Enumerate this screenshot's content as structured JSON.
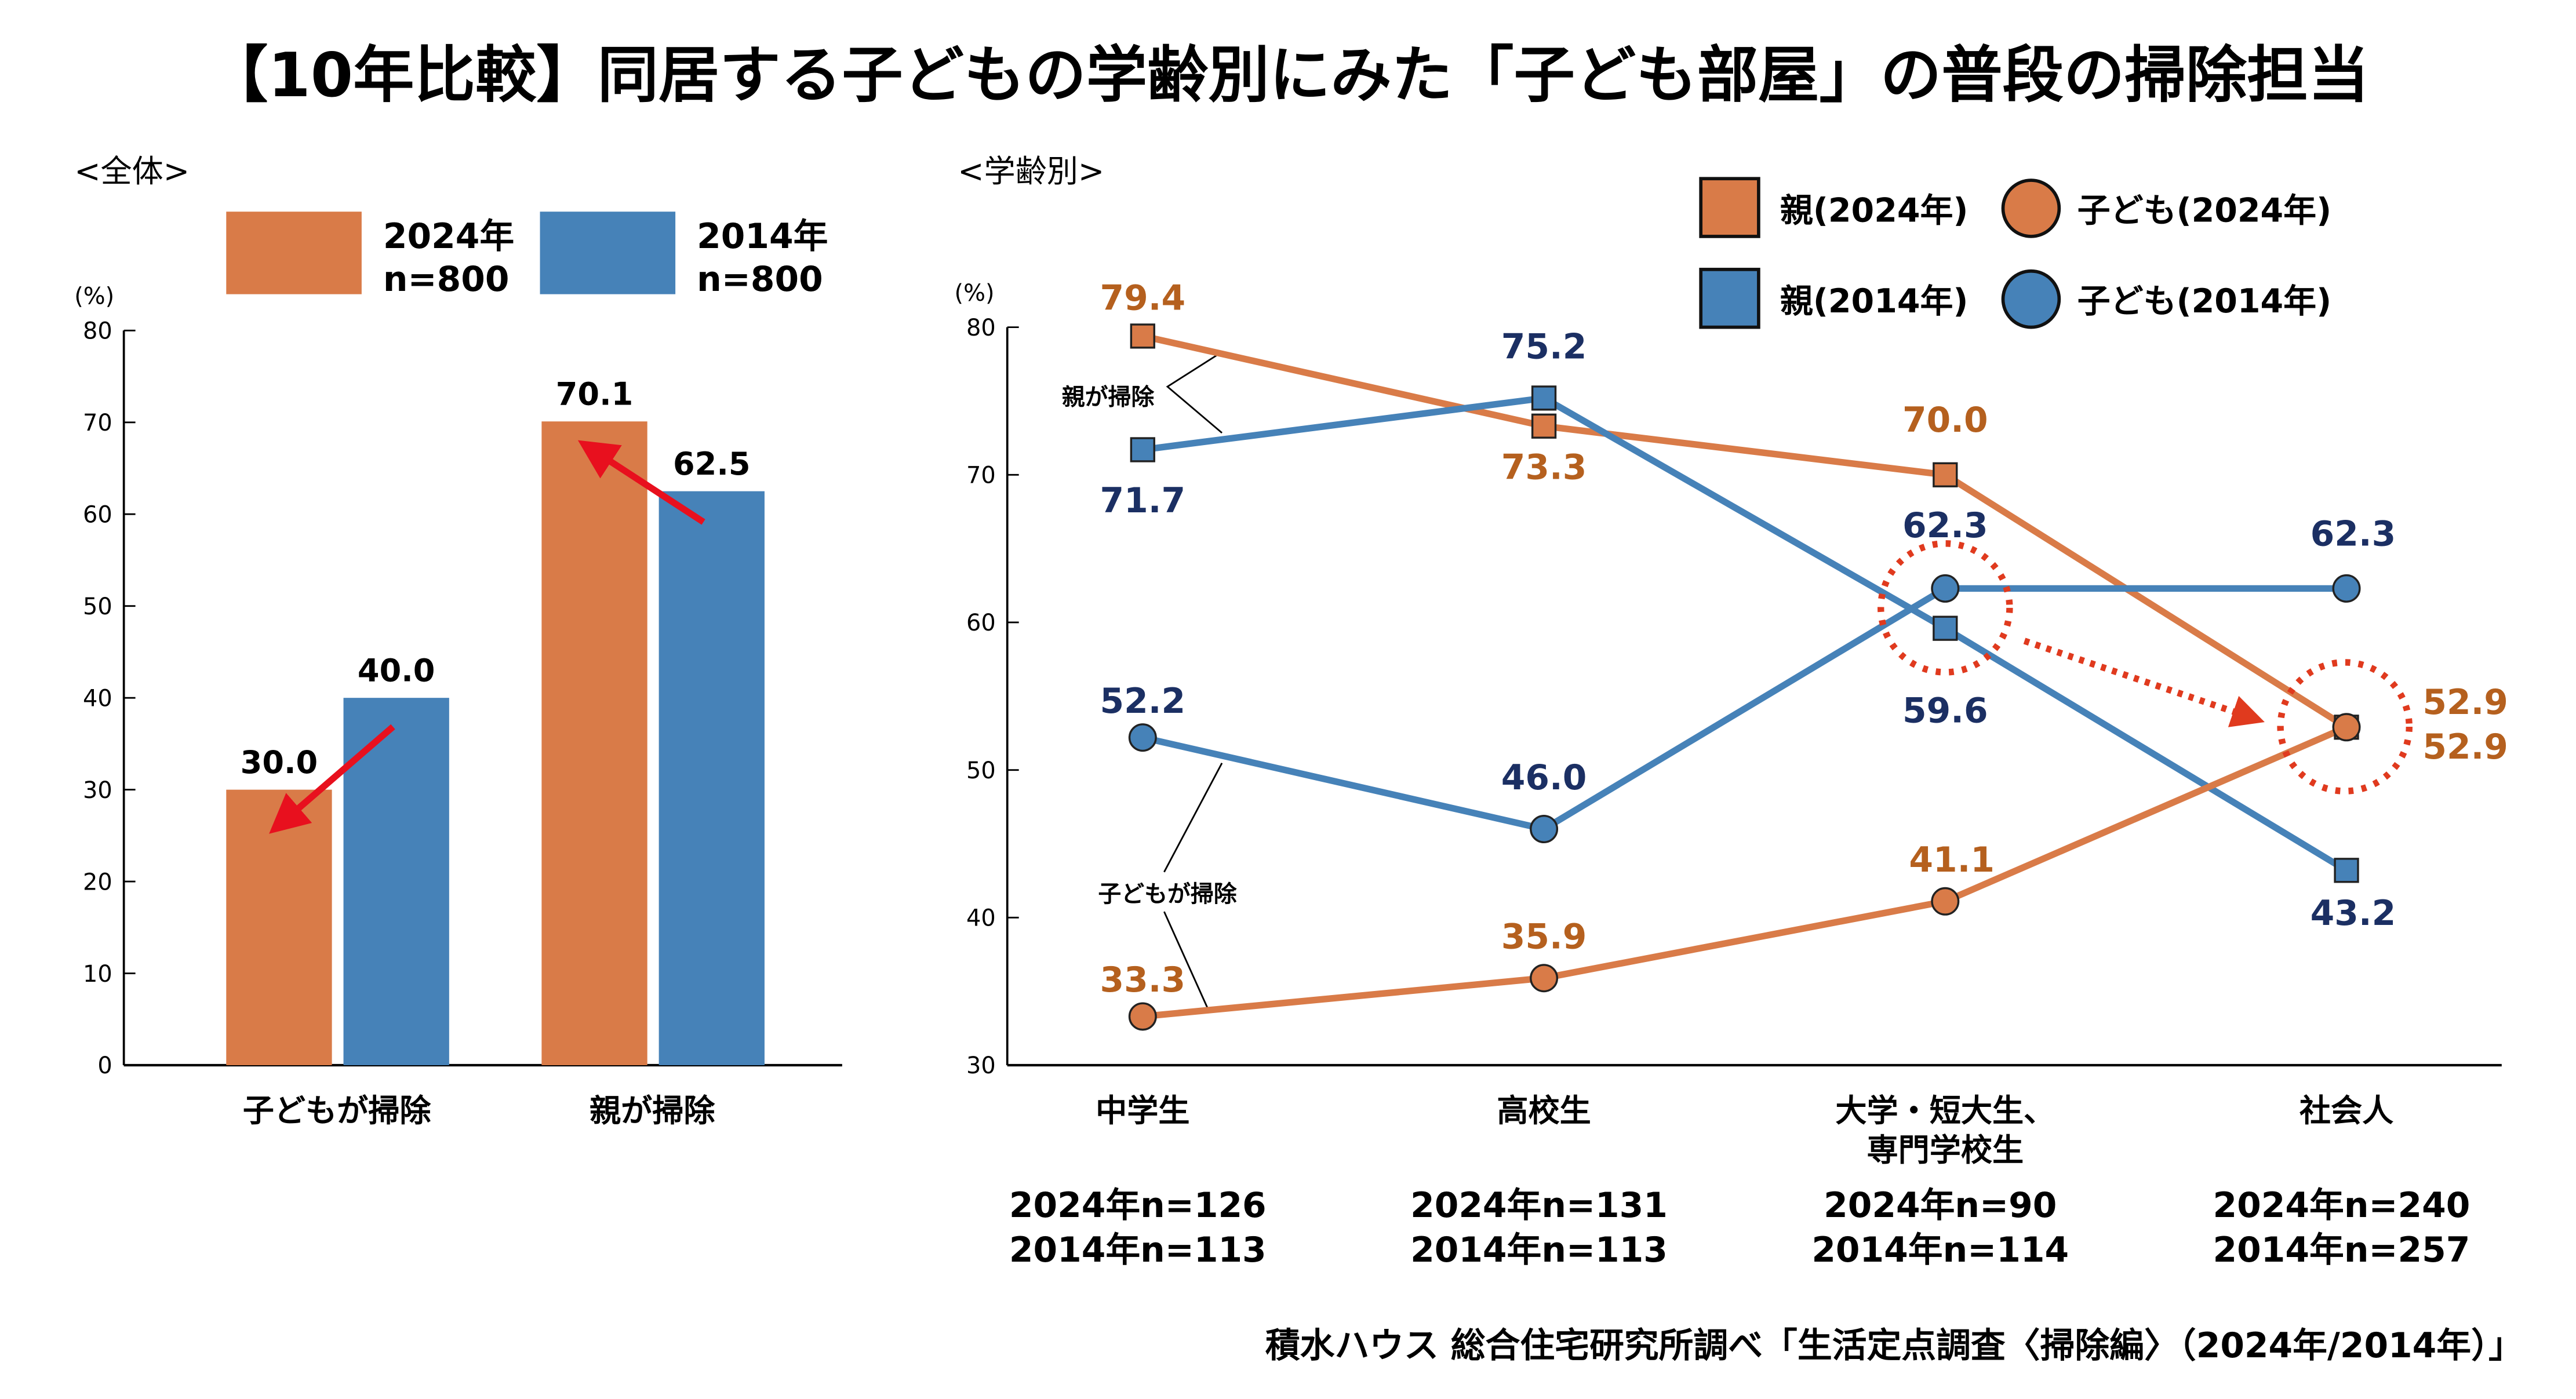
{
  "title": "【10年比較】同居する子どもの学齢別にみた「子ども部屋」の普段の掃除担当",
  "source": "積水ハウス 総合住宅研究所調べ「生活定点調査〈掃除編〉（2024年/2014年）」",
  "colors": {
    "y2024": "#D97B48",
    "y2014": "#4682B8",
    "label2024": "#B5601E",
    "label2014": "#1B2F63",
    "highlight": "#E03A1E"
  },
  "chart_data": [
    {
      "type": "bar",
      "panel_label": "<全体>",
      "ylabel": "(%)",
      "ylim": [
        0,
        80
      ],
      "yticks": [
        "0",
        "10",
        "20",
        "30",
        "40",
        "50",
        "60",
        "70",
        "80"
      ],
      "categories": [
        "子どもが掃除",
        "親が掃除"
      ],
      "legend": [
        {
          "year": "2024年",
          "n": "n=800"
        },
        {
          "year": "2014年",
          "n": "n=800"
        }
      ],
      "series": [
        {
          "name": "2024年",
          "values": [
            30.0,
            70.1
          ],
          "labels": [
            "30.0",
            "70.1"
          ]
        },
        {
          "name": "2014年",
          "values": [
            40.0,
            62.5
          ],
          "labels": [
            "40.0",
            "62.5"
          ]
        }
      ]
    },
    {
      "type": "line",
      "panel_label": "<学齢別>",
      "ylabel": "(%)",
      "ylim": [
        30,
        80
      ],
      "yticks": [
        "30",
        "40",
        "50",
        "60",
        "70",
        "80"
      ],
      "categories": [
        "中学生",
        "高校生",
        "大学・短大生、\n専門学校生",
        "社会人"
      ],
      "category_lines": [
        [
          "中学生"
        ],
        [
          "高校生"
        ],
        [
          "大学・短大生、",
          "専門学校生"
        ],
        [
          "社会人"
        ]
      ],
      "sample_sizes": [
        [
          "2024年n=126",
          "2014年n=113"
        ],
        [
          "2024年n=131",
          "2014年n=113"
        ],
        [
          "2024年n=90",
          "2014年n=114"
        ],
        [
          "2024年n=240",
          "2014年n=257"
        ]
      ],
      "annotations": [
        "親が掃除",
        "子どもが掃除"
      ],
      "series": [
        {
          "name": "親(2024年)",
          "marker": "square",
          "values": [
            79.4,
            73.3,
            70.0,
            52.9
          ],
          "labels": [
            "79.4",
            "73.3",
            "70.0",
            "52.9"
          ]
        },
        {
          "name": "親(2014年)",
          "marker": "square",
          "values": [
            71.7,
            75.2,
            59.6,
            43.2
          ],
          "labels": [
            "71.7",
            "75.2",
            "59.6",
            "43.2"
          ]
        },
        {
          "name": "子ども(2024年)",
          "marker": "circle",
          "values": [
            33.3,
            35.9,
            41.1,
            52.9
          ],
          "labels": [
            "33.3",
            "35.9",
            "41.1",
            "52.9"
          ]
        },
        {
          "name": "子ども(2014年)",
          "marker": "circle",
          "values": [
            52.2,
            46.0,
            62.3,
            62.3
          ],
          "labels": [
            "52.2",
            "46.0",
            "62.3",
            "62.3"
          ]
        }
      ]
    }
  ]
}
